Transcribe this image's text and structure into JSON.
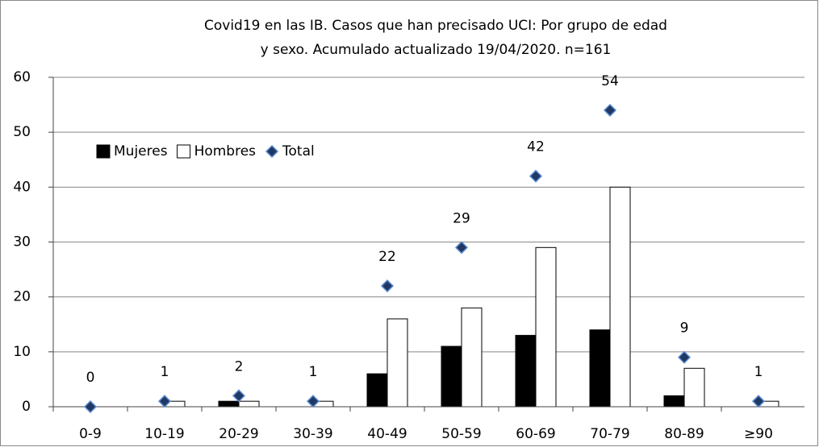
{
  "chart_data": {
    "type": "bar",
    "title": [
      "Covid19 en las IB.  Casos que han precisado  UCI: Por grupo de edad",
      "y sexo.  Acumulado actualizado 19/04/2020. n=161"
    ],
    "categories": [
      "0-9",
      "10-19",
      "20-29",
      "30-39",
      "40-49",
      "50-59",
      "60-69",
      "70-79",
      "80-89",
      "≥90"
    ],
    "series": [
      {
        "name": "Mujeres",
        "color": "#000000",
        "kind": "bar",
        "values": [
          0,
          0,
          1,
          0,
          6,
          11,
          13,
          14,
          2,
          0
        ]
      },
      {
        "name": "Hombres",
        "color": "#ffffff",
        "kind": "bar",
        "values": [
          0,
          1,
          1,
          1,
          16,
          18,
          29,
          40,
          7,
          1
        ]
      },
      {
        "name": "Total",
        "color": "#1f3864",
        "kind": "marker",
        "values": [
          0,
          1,
          2,
          1,
          22,
          29,
          42,
          54,
          9,
          1
        ]
      }
    ],
    "ylim": [
      0,
      60
    ],
    "yticks": [
      0,
      10,
      20,
      30,
      40,
      50,
      60
    ],
    "grid": true
  }
}
